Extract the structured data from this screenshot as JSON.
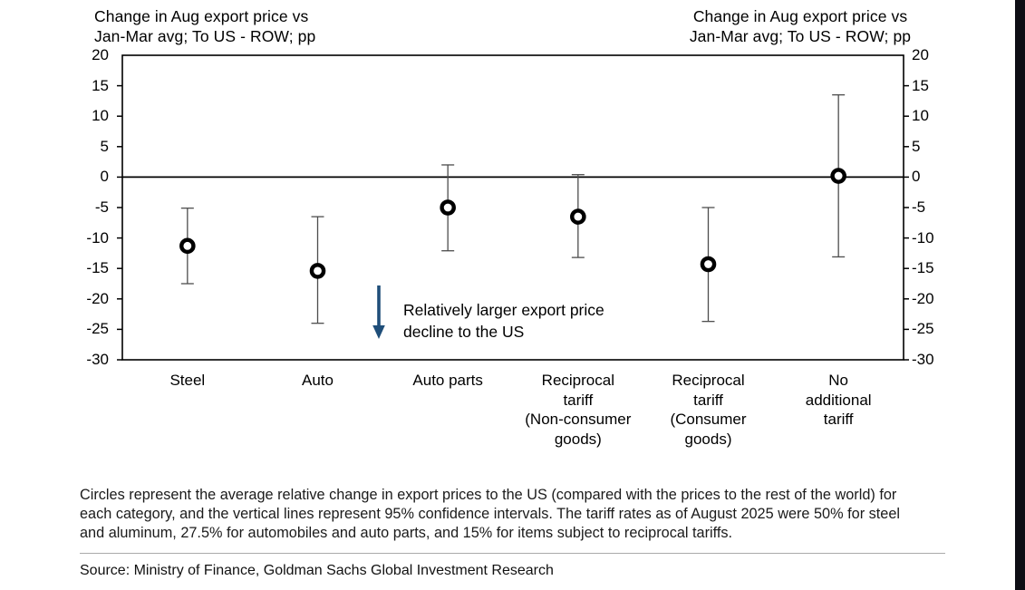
{
  "chart_data": {
    "type": "scatter",
    "title_left": "Change in Aug export price vs\nJan-Mar avg; To US - ROW; pp",
    "title_right": "Change in Aug export price vs\nJan-Mar avg; To US - ROW; pp",
    "categories": [
      "Steel",
      "Auto",
      "Auto parts",
      "Reciprocal\ntariff\n(Non-consumer\ngoods)",
      "Reciprocal\ntariff\n(Consumer\ngoods)",
      "No\nadditional\ntariff"
    ],
    "series": [
      {
        "name": "Average relative change in Aug export price vs Jan-Mar avg, To US - ROW (pp)",
        "marker": "open-circle",
        "values": [
          -11.3,
          -15.4,
          -5.0,
          -6.5,
          -14.3,
          0.2
        ],
        "ci_high": [
          -5.1,
          -6.5,
          2.0,
          0.4,
          -5.0,
          13.5
        ],
        "ci_low": [
          -17.5,
          -24.0,
          -12.1,
          -13.2,
          -23.7,
          -13.1
        ]
      }
    ],
    "ylim": [
      -30,
      20
    ],
    "yticks": [
      20,
      15,
      10,
      5,
      0,
      -5,
      -10,
      -15,
      -20,
      -25,
      -30
    ],
    "zero_line": true,
    "grid": false,
    "legend": "none",
    "annotation": {
      "text": "Relatively larger export price\ndecline to the US",
      "arrow_direction": "down"
    },
    "ci_note": "vertical lines represent 95% confidence intervals"
  },
  "footnote_lines": [
    "Circles represent the average relative change in export prices to the US (compared with the prices to the rest of the world) for",
    "each category, and the vertical lines represent 95% confidence intervals. The tariff rates as of August 2025 were 50% for steel",
    "and aluminum, 27.5% for automobiles and auto parts, and 15% for items subject to reciprocal tariffs."
  ],
  "source_line": "Source: Ministry of Finance, Goldman Sachs Global Investment Research",
  "colors": {
    "arrow": "#1f4e79",
    "error_bar": "#4d4d4d",
    "marker_stroke": "#000000",
    "marker_fill": "#ffffff",
    "axis": "#000000",
    "text": "#000000",
    "divider": "#aaaaaa",
    "right_bar": "#0e0e15",
    "background": "#ffffff"
  }
}
